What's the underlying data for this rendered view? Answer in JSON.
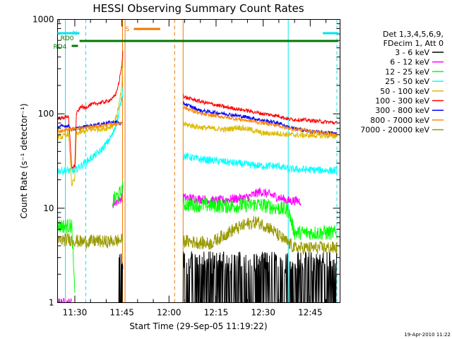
{
  "chart_data": {
    "type": "line",
    "title": "HESSI Observing Summary Count Rates",
    "xlabel": "Start Time (29-Sep-05 11:19:22)",
    "ylabel": "Count Rate (s⁻¹ detector⁻¹)",
    "y_scale": "log",
    "ylim": [
      1,
      1000
    ],
    "xlim_minutes": [
      684.5,
      774.5
    ],
    "x_ticks": [
      {
        "m": 690,
        "label": "11:30"
      },
      {
        "m": 705,
        "label": "11:45"
      },
      {
        "m": 720,
        "label": "12:00"
      },
      {
        "m": 735,
        "label": "12:15"
      },
      {
        "m": 750,
        "label": "12:30"
      },
      {
        "m": 765,
        "label": "12:45"
      }
    ],
    "y_ticks": [
      {
        "v": 1,
        "label": "1"
      },
      {
        "v": 10,
        "label": "10"
      },
      {
        "v": 100,
        "label": "100"
      },
      {
        "v": 1000,
        "label": "1000"
      }
    ],
    "legend_header": [
      "Det 1,3,4,5,6,9,",
      "FDecim 1, Att 0"
    ],
    "timestamp": "19-Apr-2010 11:22",
    "flag_bars": [
      {
        "label": "N",
        "color": "#00e5ee",
        "segments": [
          [
            684.5,
            691.5
          ],
          [
            769,
            774
          ]
        ]
      },
      {
        "label": "S",
        "color": "#ee7600",
        "segments": [
          [
            708.8,
            717.2
          ]
        ]
      },
      {
        "label": "RD0",
        "color": "#007700",
        "segments": [
          [
            691.5,
            774
          ]
        ]
      },
      {
        "label": "RD4",
        "color": "#007700",
        "segments": [
          [
            689,
            691
          ]
        ]
      }
    ],
    "vlines": [
      {
        "m": 687.0,
        "color": "#00e5ee",
        "style": "solid"
      },
      {
        "m": 693.5,
        "color": "#00e5ee",
        "style": "dashed"
      },
      {
        "m": 705.2,
        "color": "#ee7600",
        "style": "solid"
      },
      {
        "m": 706.0,
        "color": "#ee7600",
        "style": "solid"
      },
      {
        "m": 721.8,
        "color": "#ee7600",
        "style": "dashed"
      },
      {
        "m": 724.5,
        "color": "#ee7600",
        "style": "solid"
      },
      {
        "m": 758.0,
        "color": "#00e5ee",
        "style": "solid"
      },
      {
        "m": 773.5,
        "color": "#00e5ee",
        "style": "dashed"
      }
    ],
    "series": [
      {
        "name": "3 - 6 keV",
        "color": "#000000",
        "noise": 0.45,
        "segments": [
          [
            [
              704,
              1.0
            ],
            [
              705.3,
              1.0
            ]
          ],
          [
            [
              724.5,
              1.0
            ],
            [
              740,
              1.0
            ],
            [
              752,
              1.0
            ],
            [
              757.5,
              1.0
            ],
            [
              762,
              1.0
            ],
            [
              773.5,
              1.0
            ]
          ]
        ]
      },
      {
        "name": "6 - 12 keV",
        "color": "#ff00ff",
        "noise": 0.05,
        "segments": [
          [
            [
              684.5,
              1.0
            ],
            [
              689,
              1.0
            ]
          ],
          [
            [
              702,
              11
            ],
            [
              705,
              13
            ],
            [
              705.3,
              17
            ]
          ],
          [
            [
              724.5,
              13
            ],
            [
              735,
              12
            ],
            [
              745,
              13
            ],
            [
              749,
              15
            ],
            [
              752,
              14
            ],
            [
              758,
              12
            ],
            [
              762,
              12
            ]
          ]
        ]
      },
      {
        "name": "12 - 25 keV",
        "color": "#00ff00",
        "noise": 0.08,
        "segments": [
          [
            [
              684.5,
              6.5
            ],
            [
              688,
              6.5
            ],
            [
              689,
              6.5
            ],
            [
              690,
              1.2
            ]
          ],
          [
            [
              702,
              12
            ],
            [
              705,
              15
            ],
            [
              705.3,
              20
            ]
          ],
          [
            [
              724.5,
              11
            ],
            [
              740,
              10.5
            ],
            [
              748,
              11
            ],
            [
              755,
              10
            ],
            [
              758,
              9.5
            ],
            [
              760,
              5.5
            ],
            [
              773.5,
              5.5
            ]
          ]
        ]
      },
      {
        "name": "25 - 50 keV",
        "color": "#00ffff",
        "noise": 0.04,
        "segments": [
          [
            [
              684.5,
              25
            ],
            [
              688,
              25
            ],
            [
              690,
              25
            ],
            [
              693,
              30
            ],
            [
              698,
              40
            ],
            [
              700,
              48
            ],
            [
              702,
              60
            ],
            [
              703,
              75
            ],
            [
              704,
              100
            ],
            [
              705,
              150
            ],
            [
              705.3,
              185
            ]
          ],
          [
            [
              724.5,
              36
            ],
            [
              730,
              33
            ],
            [
              738,
              31
            ],
            [
              745,
              29
            ],
            [
              750,
              28
            ],
            [
              755,
              28
            ],
            [
              758,
              26
            ],
            [
              773.5,
              25
            ]
          ]
        ]
      },
      {
        "name": "50 - 100 keV",
        "color": "#ddbb00",
        "noise": 0.03,
        "segments": [
          [
            [
              684.5,
              57
            ],
            [
              686,
              57
            ],
            [
              688,
              62
            ],
            [
              689,
              18
            ],
            [
              690,
              20
            ],
            [
              690.5,
              62
            ],
            [
              695,
              68
            ],
            [
              700,
              70
            ],
            [
              702,
              75
            ],
            [
              703,
              88
            ],
            [
              704,
              120
            ],
            [
              705,
              190
            ],
            [
              705.3,
              430
            ]
          ],
          [
            [
              724.5,
              78
            ],
            [
              730,
              72
            ],
            [
              738,
              68
            ],
            [
              742,
              72
            ],
            [
              746,
              68
            ],
            [
              750,
              62
            ],
            [
              755,
              62
            ],
            [
              758,
              60
            ],
            [
              773.5,
              58
            ]
          ]
        ]
      },
      {
        "name": "100 - 300 keV",
        "color": "#ff0000",
        "noise": 0.02,
        "segments": [
          [
            [
              684.5,
              90
            ],
            [
              686,
              90
            ],
            [
              688,
              95
            ],
            [
              689,
              27
            ],
            [
              690,
              28
            ],
            [
              690.5,
              100
            ],
            [
              692,
              120
            ],
            [
              693,
              115
            ],
            [
              695,
              125
            ],
            [
              700,
              135
            ],
            [
              702,
              145
            ],
            [
              703,
              160
            ],
            [
              704,
              210
            ],
            [
              705,
              320
            ],
            [
              705.3,
              470
            ]
          ],
          [
            [
              724.5,
              160
            ],
            [
              725,
              150
            ],
            [
              730,
              135
            ],
            [
              738,
              118
            ],
            [
              745,
              108
            ],
            [
              750,
              100
            ],
            [
              755,
              95
            ],
            [
              758,
              88
            ],
            [
              765,
              85
            ],
            [
              773.5,
              80
            ]
          ]
        ]
      },
      {
        "name": "300 - 800 keV",
        "color": "#0000ff",
        "noise": 0.02,
        "segments": [
          [
            [
              684.5,
              73
            ],
            [
              688,
              75
            ],
            [
              689,
              68
            ],
            [
              695,
              75
            ],
            [
              700,
              80
            ],
            [
              703,
              82
            ],
            [
              705,
              78
            ]
          ],
          [
            [
              724.5,
              130
            ],
            [
              730,
              108
            ],
            [
              738,
              100
            ],
            [
              745,
              92
            ],
            [
              750,
              85
            ],
            [
              755,
              80
            ],
            [
              758,
              72
            ],
            [
              765,
              65
            ],
            [
              773.5,
              62
            ]
          ]
        ]
      },
      {
        "name": "800 - 7000 keV",
        "color": "#ff8800",
        "noise": 0.02,
        "segments": [
          [
            [
              684.5,
              65
            ],
            [
              688,
              68
            ],
            [
              690,
              70
            ],
            [
              695,
              72
            ],
            [
              700,
              76
            ],
            [
              703,
              78
            ],
            [
              705,
              80
            ]
          ],
          [
            [
              724.5,
              118
            ],
            [
              730,
              100
            ],
            [
              738,
              92
            ],
            [
              745,
              85
            ],
            [
              750,
              80
            ],
            [
              755,
              75
            ],
            [
              758,
              70
            ],
            [
              765,
              66
            ],
            [
              773.5,
              60
            ]
          ]
        ]
      },
      {
        "name": "7000 - 20000 keV",
        "color": "#999900",
        "noise": 0.07,
        "segments": [
          [
            [
              684.5,
              4.5
            ],
            [
              688,
              4.7
            ],
            [
              692,
              4.4
            ],
            [
              697,
              4.5
            ],
            [
              700,
              4.4
            ],
            [
              705.2,
              4.6
            ]
          ],
          [
            [
              724.5,
              4.5
            ],
            [
              733,
              4.2
            ],
            [
              740,
              5.8
            ],
            [
              745,
              6.8
            ],
            [
              748,
              7.2
            ],
            [
              752,
              6.2
            ],
            [
              756,
              4.8
            ],
            [
              760,
              3.8
            ],
            [
              773.5,
              3.8
            ]
          ]
        ]
      }
    ]
  }
}
